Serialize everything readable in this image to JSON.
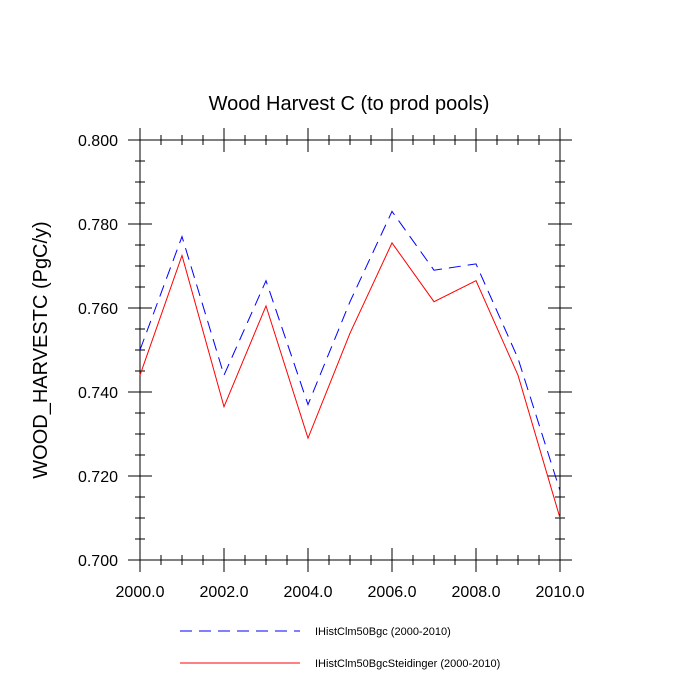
{
  "chart_data": {
    "type": "line",
    "title": "Wood Harvest C (to prod pools)",
    "xlabel": "",
    "ylabel": "WOOD_HARVESTC  (PgC/y)",
    "xlim": [
      2000,
      2010
    ],
    "ylim": [
      0.7,
      0.8
    ],
    "x_ticks": [
      "2000.0",
      "2002.0",
      "2004.0",
      "2006.0",
      "2008.0",
      "2010.0"
    ],
    "x_tick_values": [
      2000,
      2002,
      2004,
      2006,
      2008,
      2010
    ],
    "y_ticks": [
      "0.700",
      "0.720",
      "0.740",
      "0.760",
      "0.780",
      "0.800"
    ],
    "y_tick_values": [
      0.7,
      0.72,
      0.74,
      0.76,
      0.78,
      0.8
    ],
    "x": [
      2000,
      2001,
      2002,
      2003,
      2004,
      2005,
      2006,
      2007,
      2008,
      2009,
      2010
    ],
    "series": [
      {
        "name": "IHistClm50Bgc (2000-2010)",
        "color": "#0000ff",
        "dash": "dashed",
        "values": [
          0.75,
          0.777,
          0.744,
          0.7665,
          0.737,
          0.7615,
          0.783,
          0.769,
          0.7705,
          0.748,
          0.7165
        ]
      },
      {
        "name": "IHistClm50BgcSteidinger (2000-2010)",
        "color": "#ff0000",
        "dash": "solid",
        "values": [
          0.744,
          0.7725,
          0.7365,
          0.7605,
          0.729,
          0.754,
          0.7755,
          0.7615,
          0.7665,
          0.744,
          0.71
        ]
      }
    ],
    "legend_position": "bottom",
    "grid": false
  }
}
